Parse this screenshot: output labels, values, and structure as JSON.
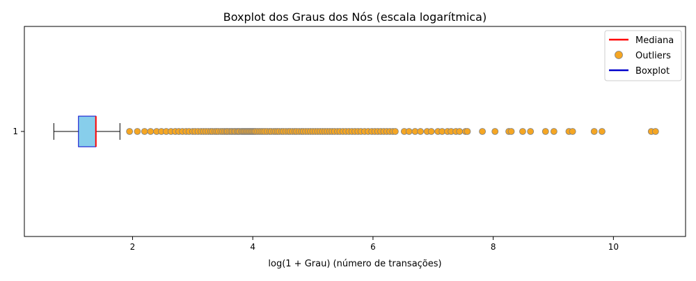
{
  "chart_data": {
    "type": "boxplot",
    "title": "Boxplot dos Graus dos Nós (escala logarítmica)",
    "xlabel": "log(1 + Grau) (número de transações)",
    "ylabel": "",
    "orientation": "horizontal",
    "xlim": [
      0.2,
      11.2
    ],
    "xticks": [
      2,
      4,
      6,
      8,
      10
    ],
    "yticks": [
      "1"
    ],
    "grid": false,
    "legend_position": "top-right",
    "legend": [
      {
        "label": "Mediana",
        "kind": "line",
        "color": "#ff0000"
      },
      {
        "label": "Outliers",
        "kind": "marker",
        "color": "#f5a623"
      },
      {
        "label": "Boxplot",
        "kind": "line",
        "color": "#0000cc"
      }
    ],
    "series": [
      {
        "name": "1",
        "whisker_low": 0.69,
        "q1": 1.1,
        "median": 1.39,
        "q3": 1.39,
        "whisker_high": 1.79,
        "box_color": "#87ceeb",
        "box_edge": "#0000cc",
        "median_color": "#ff0000",
        "outlier_color": "#f5a623",
        "outlier_edge": "#808080",
        "outliers": [
          1.95,
          2.08,
          2.2,
          2.3,
          2.4,
          2.48,
          2.56,
          2.64,
          2.71,
          2.77,
          2.83,
          2.89,
          2.94,
          3.0,
          3.04,
          3.09,
          3.14,
          3.18,
          3.22,
          3.26,
          3.3,
          3.33,
          3.37,
          3.4,
          3.43,
          3.47,
          3.5,
          3.53,
          3.56,
          3.58,
          3.61,
          3.64,
          3.66,
          3.69,
          3.71,
          3.74,
          3.76,
          3.78,
          3.81,
          3.83,
          3.85,
          3.87,
          3.89,
          3.91,
          3.93,
          3.95,
          3.97,
          3.99,
          4.01,
          4.03,
          4.05,
          4.08,
          4.11,
          4.14,
          4.17,
          4.2,
          4.24,
          4.28,
          4.31,
          4.35,
          4.38,
          4.41,
          4.44,
          4.48,
          4.51,
          4.55,
          4.59,
          4.62,
          4.66,
          4.7,
          4.73,
          4.77,
          4.81,
          4.84,
          4.88,
          4.92,
          4.96,
          5.0,
          5.04,
          5.08,
          5.12,
          5.16,
          5.2,
          5.24,
          5.28,
          5.32,
          5.36,
          5.41,
          5.45,
          5.5,
          5.55,
          5.6,
          5.65,
          5.7,
          5.75,
          5.8,
          5.86,
          5.92,
          5.98,
          6.03,
          6.08,
          6.13,
          6.18,
          6.23,
          6.28,
          6.33,
          6.37,
          6.52,
          6.6,
          6.7,
          6.79,
          6.9,
          6.97,
          7.08,
          7.15,
          7.24,
          7.3,
          7.38,
          7.44,
          7.54,
          7.57,
          7.82,
          8.03,
          8.26,
          8.3,
          8.49,
          8.62,
          8.87,
          9.01,
          9.26,
          9.32,
          9.68,
          9.81,
          10.63,
          10.7
        ]
      }
    ]
  }
}
